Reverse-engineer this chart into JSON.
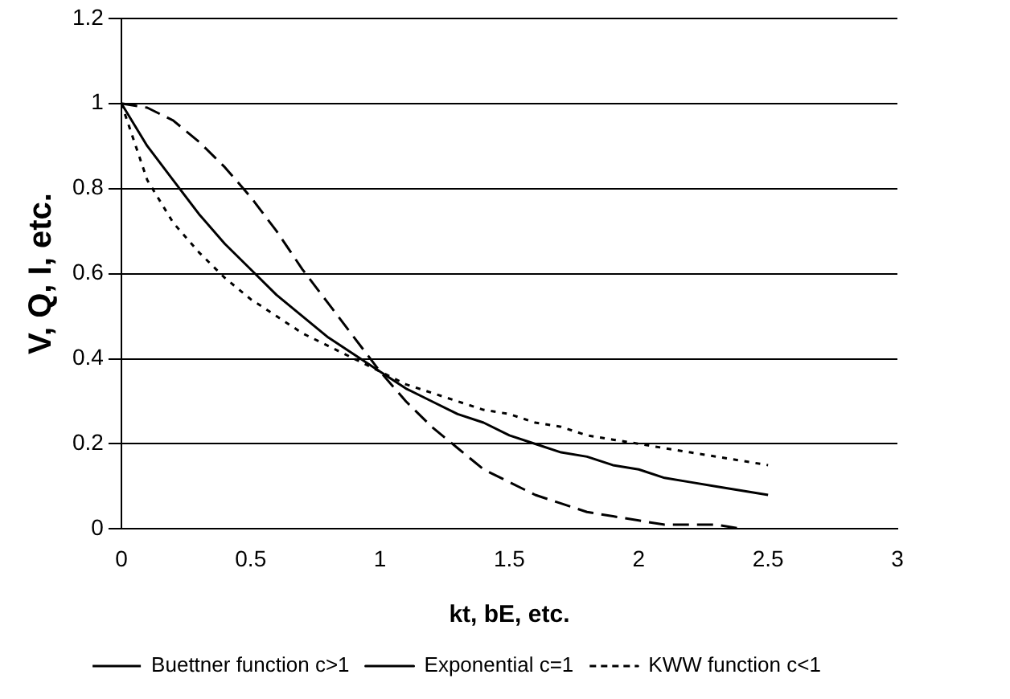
{
  "chart_data": {
    "type": "line",
    "xlabel": "kt, bE, etc.",
    "ylabel": "V, Q, I, etc.",
    "x": [
      0,
      0.1,
      0.2,
      0.3,
      0.4,
      0.5,
      0.6,
      0.7,
      0.8,
      0.9,
      1,
      1.1,
      1.2,
      1.3,
      1.4,
      1.5,
      1.6,
      1.7,
      1.8,
      1.9,
      2,
      2.1,
      2.2,
      2.3,
      2.4,
      2.5
    ],
    "series": [
      {
        "name": "Buettner function c>1",
        "color": "#000000",
        "line_style": "dashed",
        "values": [
          1,
          0.99,
          0.96,
          0.91,
          0.85,
          0.78,
          0.7,
          0.61,
          0.53,
          0.45,
          0.37,
          0.3,
          0.24,
          0.19,
          0.14,
          0.11,
          0.08,
          0.06,
          0.04,
          0.03,
          0.02,
          0.01,
          0.01,
          0.01,
          0,
          0
        ]
      },
      {
        "name": "Exponential c=1",
        "color": "#000000",
        "line_style": "solid",
        "values": [
          1,
          0.9,
          0.82,
          0.74,
          0.67,
          0.61,
          0.55,
          0.5,
          0.45,
          0.41,
          0.37,
          0.33,
          0.3,
          0.27,
          0.25,
          0.22,
          0.2,
          0.18,
          0.17,
          0.15,
          0.14,
          0.12,
          0.11,
          0.1,
          0.09,
          0.08
        ]
      },
      {
        "name": "KWW function c<1",
        "color": "#000000",
        "line_style": "dotted",
        "values": [
          1,
          0.82,
          0.72,
          0.65,
          0.59,
          0.54,
          0.5,
          0.46,
          0.43,
          0.4,
          0.37,
          0.34,
          0.32,
          0.3,
          0.28,
          0.27,
          0.25,
          0.24,
          0.22,
          0.21,
          0.2,
          0.19,
          0.18,
          0.17,
          0.16,
          0.15
        ]
      }
    ],
    "xlim": [
      0,
      3
    ],
    "xticks": [
      0,
      0.5,
      1,
      1.5,
      2,
      2.5,
      3
    ],
    "ylim": [
      0,
      1.2
    ],
    "yticks": [
      0,
      0.2,
      0.4,
      0.6,
      0.8,
      1,
      1.2
    ],
    "grid": "y",
    "legend": "bottom",
    "marker": "none"
  }
}
